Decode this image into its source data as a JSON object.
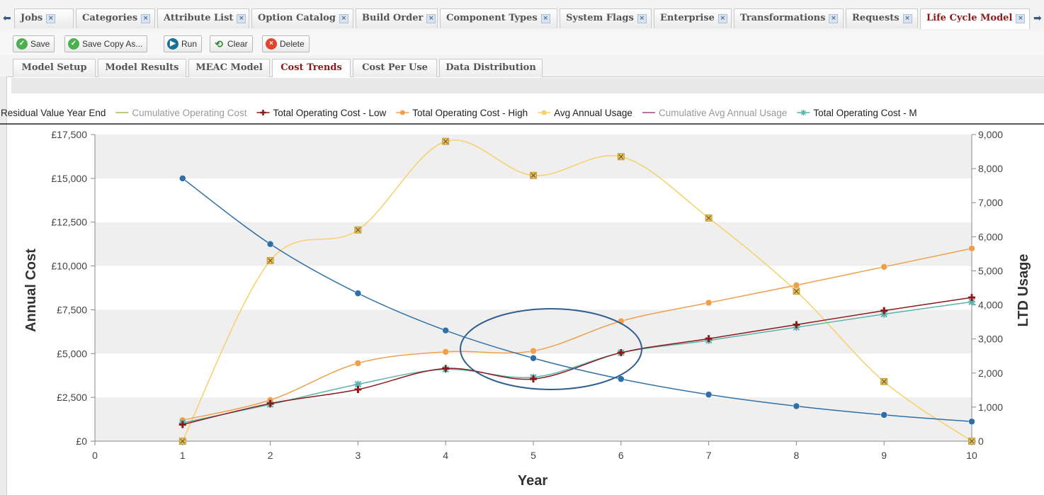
{
  "tabs": [
    {
      "label": "Jobs"
    },
    {
      "label": "Categories"
    },
    {
      "label": "Attribute List"
    },
    {
      "label": "Option Catalog"
    },
    {
      "label": "Build Order"
    },
    {
      "label": "Component Types"
    },
    {
      "label": "System Flags"
    },
    {
      "label": "Enterprise"
    },
    {
      "label": "Transformations"
    },
    {
      "label": "Requests"
    },
    {
      "label": "Life Cycle Model",
      "active": true
    }
  ],
  "toolbar": {
    "save_label": "Save",
    "save_copy_label": "Save Copy As...",
    "run_label": "Run",
    "clear_label": "Clear",
    "delete_label": "Delete"
  },
  "subtabs": [
    {
      "label": "Model Setup"
    },
    {
      "label": "Model Results"
    },
    {
      "label": "MEAC Model"
    },
    {
      "label": "Cost Trends",
      "active": true
    },
    {
      "label": "Cost Per Use"
    },
    {
      "label": "Data Distribution"
    }
  ],
  "colors": {
    "accent": "#8b1a1a",
    "series_blue": "#2f6fa8",
    "series_orange": "#f0a04b",
    "series_darkred": "#8b1a1a",
    "series_teal": "#5bb3ad",
    "series_yellow": "#f5d168",
    "series_purple": "#9b4a86",
    "series_olive": "#a9b84a"
  },
  "chart_data": {
    "type": "line",
    "xlabel": "Year",
    "ylabel": "Annual Cost",
    "y2label": "LTD Usage",
    "xlim": [
      0,
      10
    ],
    "ylim": [
      0,
      17500
    ],
    "y2lim": [
      0,
      9000
    ],
    "x_ticks": [
      "0",
      "1",
      "2",
      "3",
      "4",
      "5",
      "6",
      "7",
      "8",
      "9",
      "10"
    ],
    "y_ticks": [
      "£0",
      "£2,500",
      "£5,000",
      "£7,500",
      "£10,000",
      "£12,500",
      "£15,000",
      "£17,500"
    ],
    "y2_ticks": [
      "0",
      "1,000",
      "2,000",
      "3,000",
      "4,000",
      "5,000",
      "6,000",
      "7,000",
      "8,000",
      "9,000"
    ],
    "grid": "horizontal bands",
    "legend_position": "top",
    "legend": [
      {
        "name": "Residual Value Year End",
        "color": "#2f6fa8",
        "marker": "none"
      },
      {
        "name": "Cumulative Operating Cost",
        "color": "#a9b84a",
        "marker": "none"
      },
      {
        "name": "Total Operating Cost - Low",
        "color": "#8b1a1a",
        "marker": "plus"
      },
      {
        "name": "Total Operating Cost - High",
        "color": "#f0a04b",
        "marker": "circle"
      },
      {
        "name": "Avg Annual Usage",
        "color": "#f5d168",
        "marker": "square"
      },
      {
        "name": "Cumulative Avg Annual Usage",
        "color": "#9b4a86",
        "marker": "none"
      },
      {
        "name": "Total Operating Cost - M",
        "color": "#5bb3ad",
        "marker": "star"
      }
    ],
    "series": [
      {
        "name": "Residual Value Year End",
        "axis": "left",
        "color": "#2f6fa8",
        "marker": "circle",
        "x": [
          1,
          2,
          3,
          4,
          5,
          6,
          7,
          8,
          9,
          10
        ],
        "values": [
          15000,
          11250,
          8440,
          6320,
          4740,
          3550,
          2660,
          2000,
          1500,
          1120
        ]
      },
      {
        "name": "Total Operating Cost - High",
        "axis": "left",
        "color": "#f0a04b",
        "marker": "circle",
        "x": [
          1,
          2,
          3,
          4,
          5,
          6,
          7,
          8,
          9,
          10
        ],
        "values": [
          1200,
          2350,
          4450,
          5100,
          5150,
          6850,
          7900,
          8900,
          9950,
          11000
        ]
      },
      {
        "name": "Total Operating Cost - Low",
        "axis": "left",
        "color": "#8b1a1a",
        "marker": "plus",
        "x": [
          1,
          2,
          3,
          4,
          5,
          6,
          7,
          8,
          9,
          10
        ],
        "values": [
          950,
          2150,
          2950,
          4150,
          3550,
          5050,
          5850,
          6650,
          7450,
          8200
        ]
      },
      {
        "name": "Total Operating Cost - M",
        "axis": "left",
        "color": "#5bb3ad",
        "marker": "star",
        "x": [
          1,
          2,
          3,
          4,
          5,
          6,
          7,
          8,
          9,
          10
        ],
        "values": [
          1050,
          2100,
          3250,
          4100,
          3650,
          5050,
          5750,
          6500,
          7250,
          7950
        ]
      },
      {
        "name": "Avg Annual Usage",
        "axis": "right",
        "color": "#f5d168",
        "marker": "xsquare",
        "x": [
          1,
          2,
          3,
          4,
          5,
          6,
          7,
          8,
          9,
          10
        ],
        "values": [
          0,
          5300,
          6200,
          8800,
          7800,
          8350,
          6550,
          4400,
          1750,
          0
        ]
      }
    ]
  }
}
